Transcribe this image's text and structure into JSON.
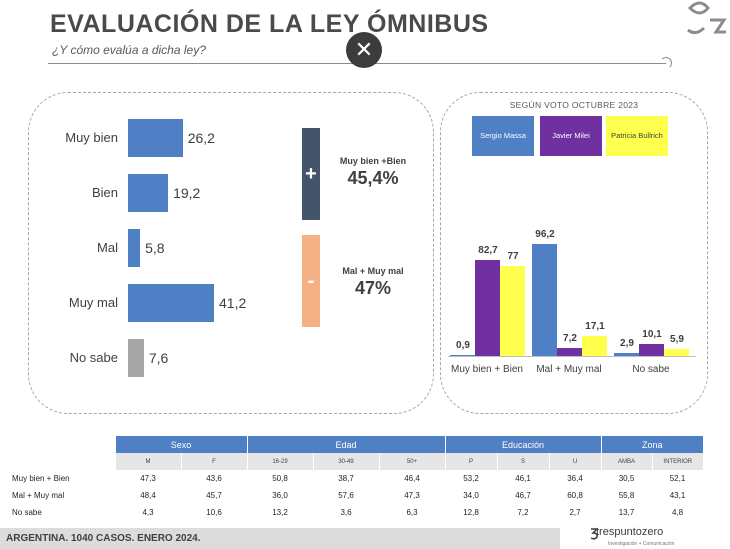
{
  "header": {
    "title": "EVALUACIÓN DE LA LEY ÓMNIBUS",
    "subtitle": "¿Y cómo evalúa a dicha ley?",
    "close_symbol": "✕"
  },
  "summary": {
    "positive_symbol": "+",
    "positive_label": "Muy bien +Bien",
    "positive_value": "45,4%",
    "negative_symbol": "-",
    "negative_label": "Mal + Muy mal",
    "negative_value": "47%",
    "colors": {
      "positive": "#44546a",
      "negative": "#f4b183"
    }
  },
  "right_panel": {
    "title": "SEGÚN VOTO OCTUBRE 2023",
    "legend": [
      {
        "label": "Sergio Massa",
        "color": "#4f7fc4",
        "text_color": "#ffffff"
      },
      {
        "label": "Javier Milei",
        "color": "#7030a0",
        "text_color": "#ffffff"
      },
      {
        "label": "Patricia Bullrich",
        "color": "#ffff4d",
        "text_color": "#404040"
      }
    ]
  },
  "chart_data": [
    {
      "type": "bar",
      "orientation": "horizontal",
      "categories": [
        "Muy bien",
        "Bien",
        "Mal",
        "Muy mal",
        "No sabe"
      ],
      "values": [
        26.2,
        19.2,
        5.8,
        41.2,
        7.6
      ],
      "value_labels": [
        "26,2",
        "19,2",
        "5,8",
        "41,2",
        "7,6"
      ],
      "colors": [
        "#4f7fc4",
        "#4f7fc4",
        "#4f7fc4",
        "#4f7fc4",
        "#a6a6a6"
      ],
      "xlim": [
        0,
        45
      ]
    },
    {
      "type": "bar",
      "title": "SEGÚN VOTO OCTUBRE 2023",
      "categories": [
        "Muy bien + Bien",
        "Mal + Muy mal",
        "No sabe"
      ],
      "series": [
        {
          "name": "Sergio Massa",
          "values": [
            0.9,
            96.2,
            2.9
          ],
          "labels": [
            "0,9",
            "96,2",
            "2,9"
          ],
          "color": "#4f7fc4"
        },
        {
          "name": "Javier Milei",
          "values": [
            82.7,
            7.2,
            10.1
          ],
          "labels": [
            "82,7",
            "7,2",
            "10,1"
          ],
          "color": "#7030a0"
        },
        {
          "name": "Patricia Bullrich",
          "values": [
            77,
            17.1,
            5.9
          ],
          "labels": [
            "77",
            "17,1",
            "5,9"
          ],
          "color": "#ffff4d"
        }
      ],
      "ylim": [
        0,
        100
      ]
    },
    {
      "type": "table",
      "groups": [
        {
          "label": "Sexo",
          "columns": [
            "M",
            "F"
          ]
        },
        {
          "label": "Edad",
          "columns": [
            "16-29",
            "30-49",
            "50+"
          ]
        },
        {
          "label": "Educación",
          "columns": [
            "P",
            "S",
            "U"
          ]
        },
        {
          "label": "Zona",
          "columns": [
            "AMBA",
            "INTERIOR"
          ]
        }
      ],
      "rows": [
        {
          "label": "Muy bien + Bien",
          "values": [
            "47,3",
            "43,6",
            "50,8",
            "38,7",
            "46,4",
            "53,2",
            "46,1",
            "36,4",
            "30,5",
            "52,1"
          ]
        },
        {
          "label": "Mal + Muy mal",
          "values": [
            "48,4",
            "45,7",
            "36,0",
            "57,6",
            "47,3",
            "34,0",
            "46,7",
            "60,8",
            "55,8",
            "43,1"
          ]
        },
        {
          "label": "No sabe",
          "values": [
            "4,3",
            "10,6",
            "13,2",
            "3,6",
            "6,3",
            "12,8",
            "7,2",
            "2,7",
            "13,7",
            "4,8"
          ]
        }
      ]
    }
  ],
  "footer": {
    "text": "ARGENTINA. 1040 CASOS. ENERO 2024.",
    "brand": "trespuntozero",
    "brand_tagline": "Investigación + Comunicación"
  }
}
